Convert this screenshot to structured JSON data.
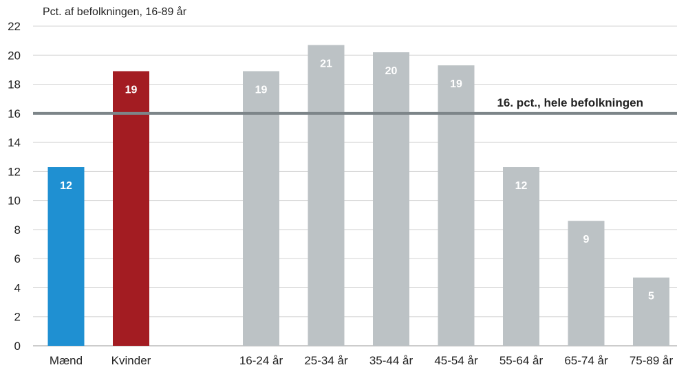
{
  "chart_data": {
    "type": "bar",
    "ylabel": "Pct. af befolkningen, 16-89 år",
    "ylim": [
      0,
      22
    ],
    "yticks": [
      0,
      2,
      4,
      6,
      8,
      10,
      12,
      14,
      16,
      18,
      20,
      22
    ],
    "grid": true,
    "categories": [
      "Mænd",
      "Kvinder",
      "",
      "16-24 år",
      "25-34 år",
      "35-44 år",
      "45-54 år",
      "55-64 år",
      "65-74 år",
      "75-89 år"
    ],
    "values": [
      12.3,
      18.9,
      null,
      18.9,
      20.7,
      20.2,
      19.3,
      12.3,
      8.6,
      4.7
    ],
    "data_labels": [
      "12",
      "19",
      "",
      "19",
      "21",
      "20",
      "19",
      "12",
      "9",
      "5"
    ],
    "bar_colors": [
      "#1f90d2",
      "#a31c22",
      "",
      "#bcc2c5",
      "#bcc2c5",
      "#bcc2c5",
      "#bcc2c5",
      "#bcc2c5",
      "#bcc2c5",
      "#bcc2c5"
    ],
    "reference_line": {
      "value": 16,
      "label": "16. pct., hele befolkningen",
      "color": "#7d8589"
    },
    "grid_color": "#d3d3d3",
    "axis_color": "#9a9a9a"
  }
}
